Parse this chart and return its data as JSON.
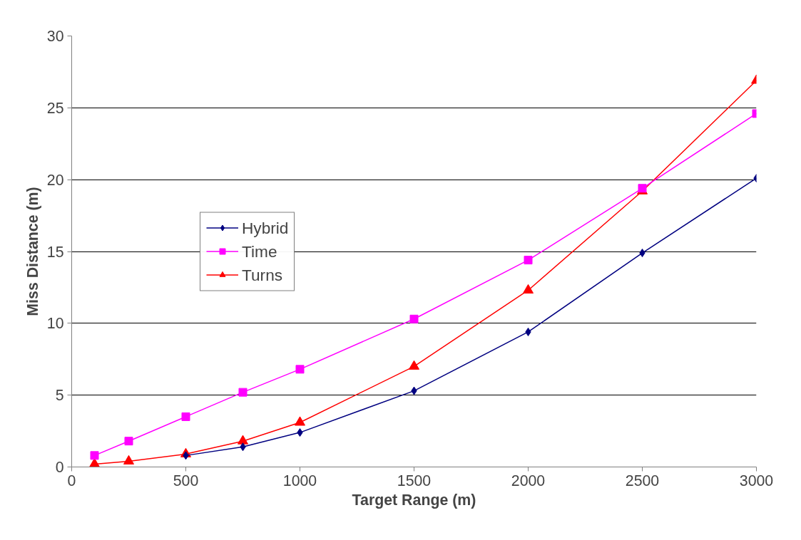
{
  "chart_data": {
    "type": "line",
    "xlabel": "Target Range (m)",
    "ylabel": "Miss Distance (m)",
    "xlim": [
      0,
      3000
    ],
    "xticks": [
      0,
      500,
      1000,
      1500,
      2000,
      2500,
      3000
    ],
    "ylim": [
      0,
      30
    ],
    "yticks": [
      0,
      5,
      10,
      15,
      20,
      25,
      30
    ],
    "grid": "y",
    "legend": "left",
    "series": [
      {
        "name": "Hybrid",
        "color": "#000080",
        "marker": "diamond",
        "x": [
          500,
          750,
          1000,
          1500,
          2000,
          2500,
          3000
        ],
        "values": [
          0.8,
          1.4,
          2.4,
          5.3,
          9.4,
          14.9,
          20.1
        ]
      },
      {
        "name": "Time",
        "color": "#ff00ff",
        "marker": "square",
        "x": [
          100,
          250,
          500,
          750,
          1000,
          1500,
          2000,
          2500,
          3000
        ],
        "values": [
          0.8,
          1.8,
          3.5,
          5.2,
          6.8,
          10.3,
          14.4,
          19.4,
          24.6
        ]
      },
      {
        "name": "Turns",
        "color": "#ff0000",
        "marker": "triangle",
        "x": [
          100,
          250,
          500,
          750,
          1000,
          1500,
          2000,
          2500,
          3000
        ],
        "values": [
          0.2,
          0.4,
          0.9,
          1.8,
          3.1,
          7.0,
          12.3,
          19.2,
          26.9
        ]
      }
    ]
  }
}
